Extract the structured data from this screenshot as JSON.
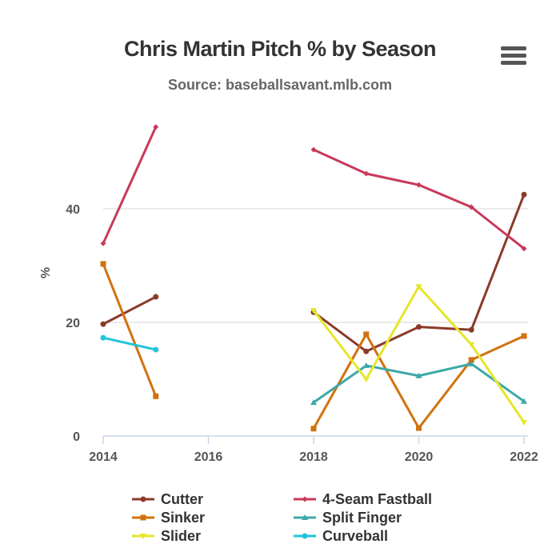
{
  "chart_data": {
    "type": "line",
    "title": "Chris Martin Pitch % by Season",
    "subtitle": "Source: baseballsavant.mlb.com",
    "ylabel": "%",
    "xlabel": "",
    "x": [
      2014,
      2015,
      2016,
      2017,
      2018,
      2019,
      2020,
      2021,
      2022
    ],
    "xticks": [
      "2014",
      "2016",
      "2018",
      "2020",
      "2022"
    ],
    "yticks": [
      "0",
      "20",
      "40"
    ],
    "xlim": [
      2014,
      2022
    ],
    "ylim": [
      0,
      55
    ],
    "grid": "horizontal",
    "legend_position": "bottom",
    "series": [
      {
        "name": "Cutter",
        "color": "#8b3a2a",
        "marker": "circle",
        "values": [
          19.7,
          24.5,
          null,
          null,
          21.8,
          14.9,
          19.2,
          18.7,
          42.5
        ]
      },
      {
        "name": "4-Seam Fastball",
        "color": "#c83a5a",
        "marker": "diamond",
        "values": [
          33.9,
          54.4,
          null,
          null,
          50.4,
          46.2,
          44.2,
          40.3,
          33.0
        ]
      },
      {
        "name": "Sinker",
        "color": "#d2720e",
        "marker": "square",
        "values": [
          30.3,
          7.0,
          null,
          null,
          1.3,
          17.9,
          1.4,
          13.4,
          17.6
        ]
      },
      {
        "name": "Split Finger",
        "color": "#3fa8a8",
        "marker": "triangle",
        "values": [
          null,
          null,
          null,
          null,
          5.9,
          12.4,
          10.6,
          12.7,
          6.1
        ]
      },
      {
        "name": "Slider",
        "color": "#e6e62a",
        "marker": "triangle-down",
        "values": [
          null,
          null,
          null,
          null,
          22.1,
          10.0,
          26.3,
          16.1,
          2.4
        ]
      },
      {
        "name": "Curveball",
        "color": "#22c4d8",
        "marker": "circle",
        "values": [
          17.3,
          15.2,
          null,
          null,
          null,
          null,
          null,
          null,
          null
        ]
      }
    ]
  },
  "menu_icon": "hamburger-menu-icon"
}
